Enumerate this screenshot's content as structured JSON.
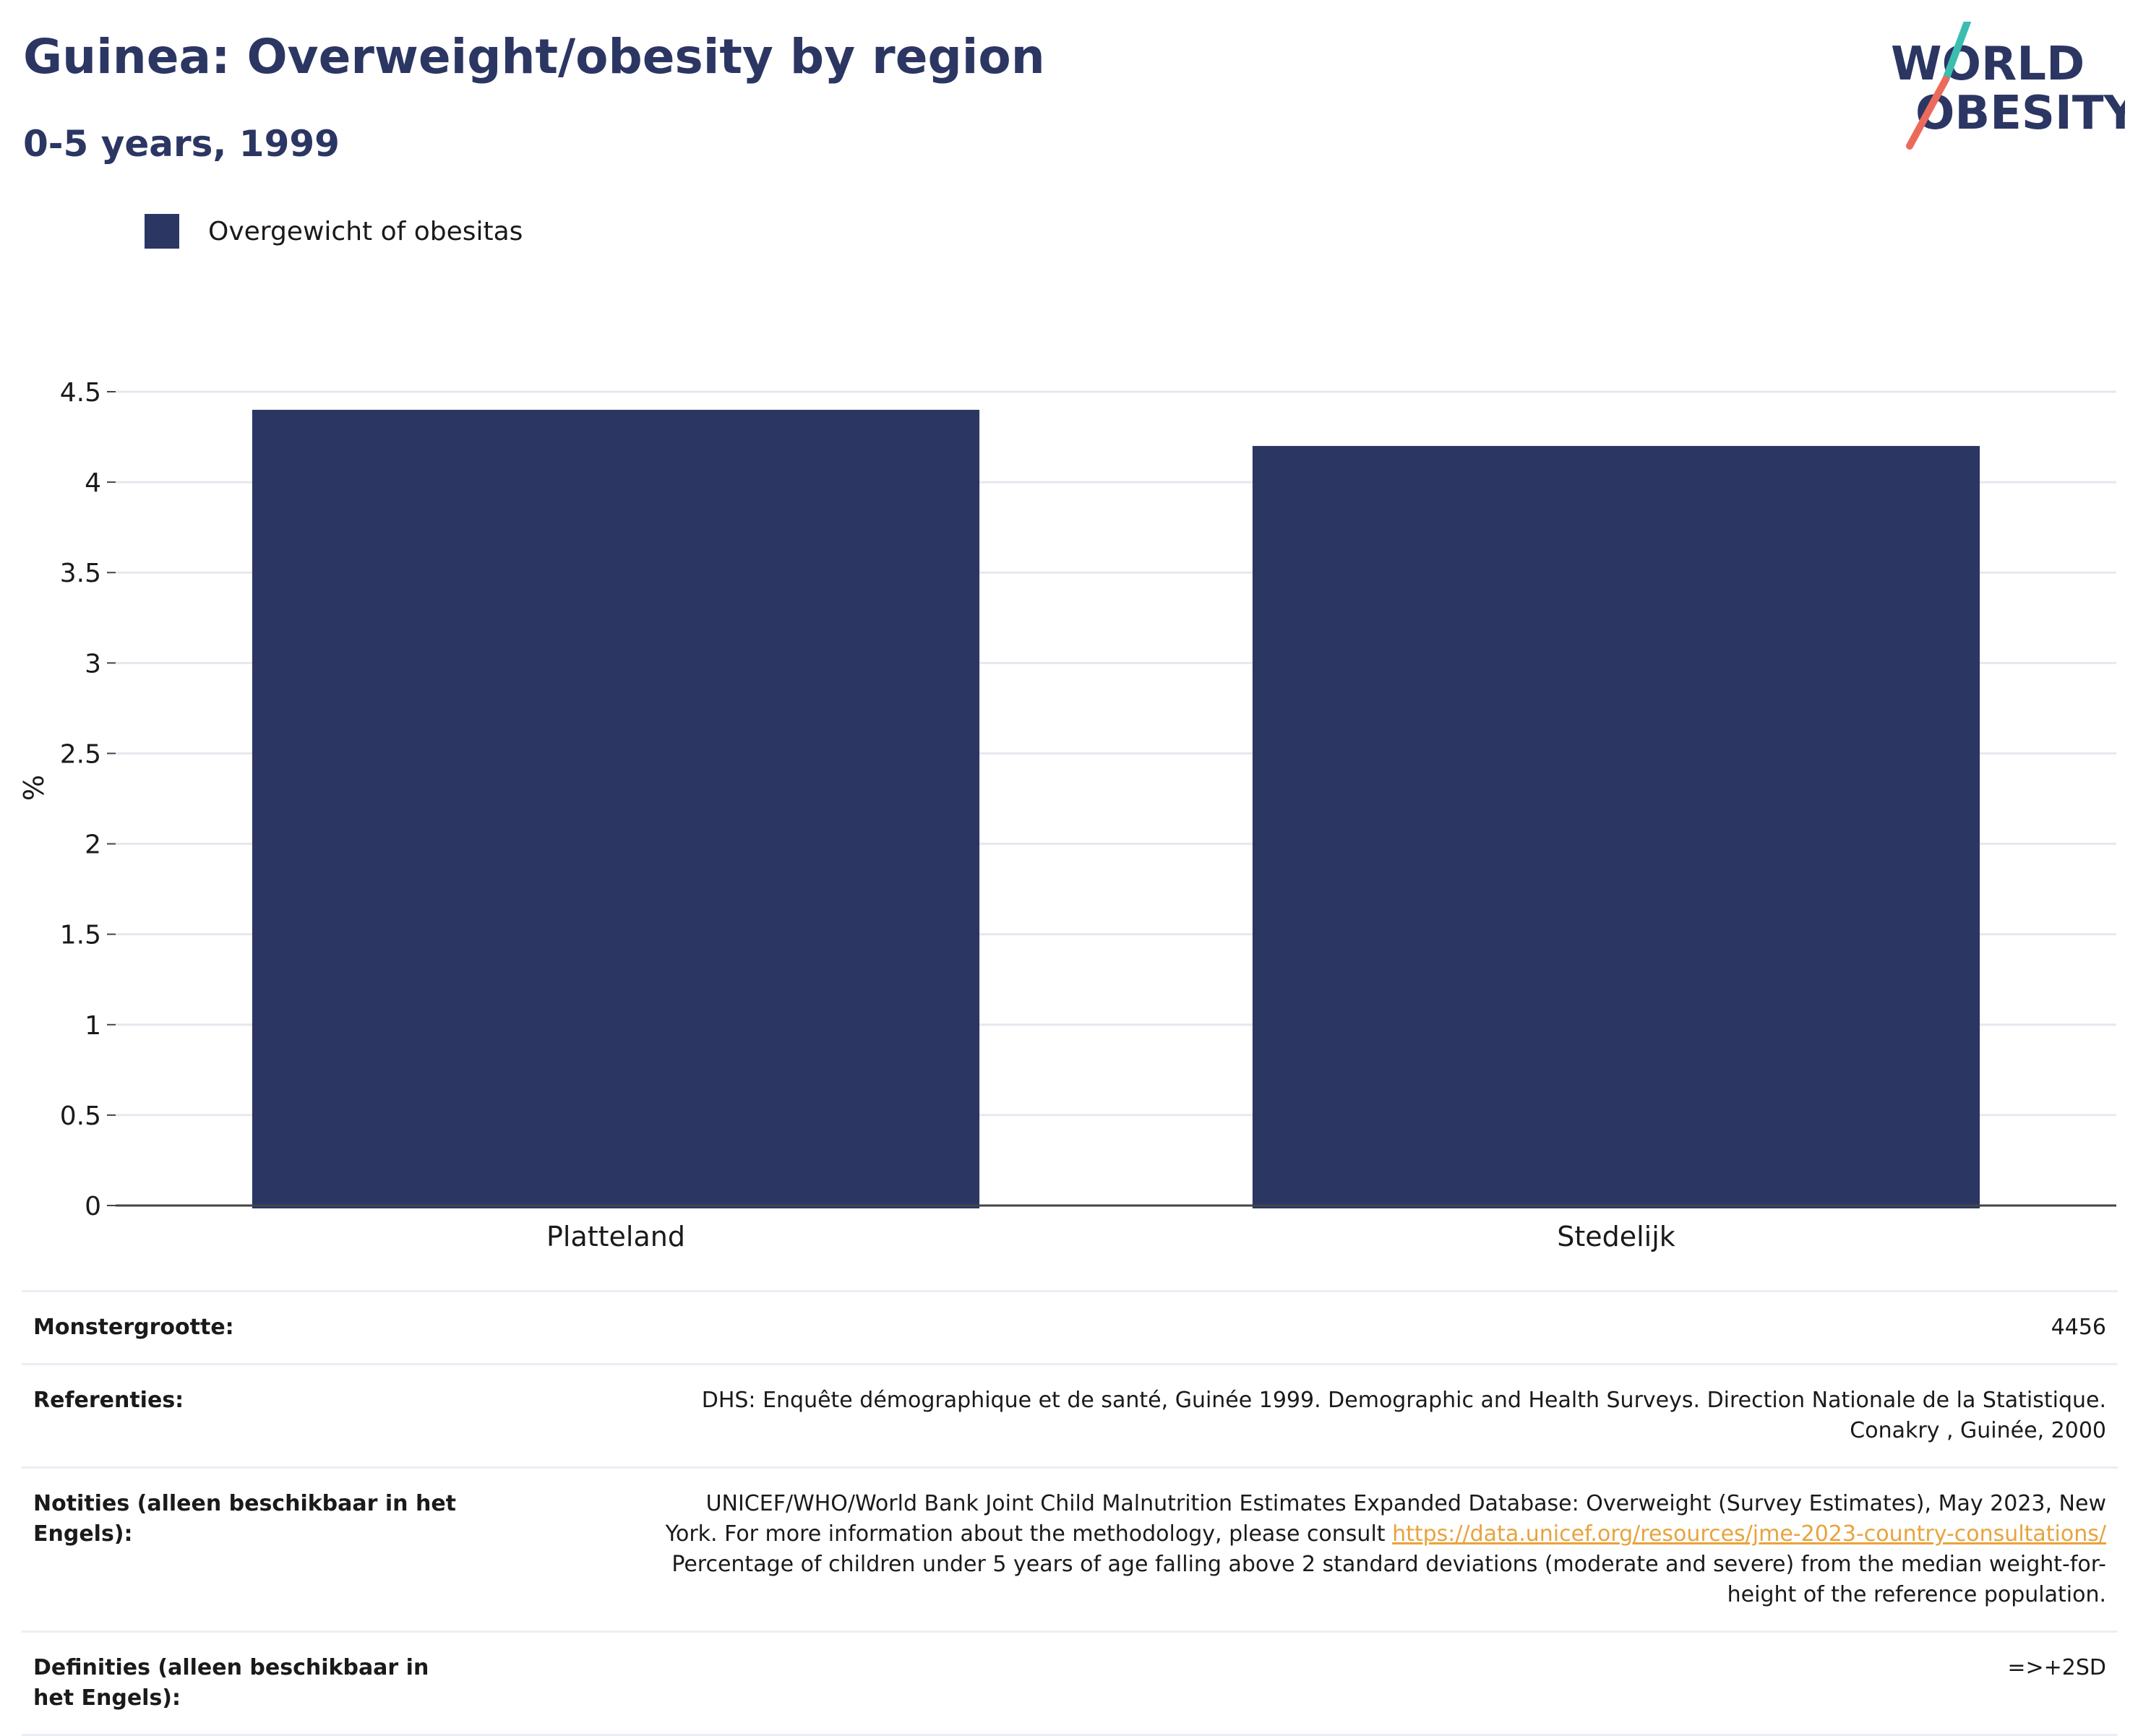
{
  "header": {
    "title": "Guinea: Overweight/obesity by region",
    "subtitle": "0-5 years, 1999"
  },
  "logo": {
    "line1": "WORLD",
    "line2": "OBESITY",
    "colors": {
      "text": "#2b3663",
      "slash_teal": "#3bbdb0",
      "slash_coral": "#ec6a5c"
    }
  },
  "legend": {
    "label": "Overgewicht of obesitas",
    "color": "#2b3663"
  },
  "chart_data": {
    "type": "bar",
    "categories": [
      "Platteland",
      "Stedelijk"
    ],
    "series": [
      {
        "name": "Overgewicht of obesitas",
        "values": [
          4.4,
          4.2
        ]
      }
    ],
    "ylabel": "%",
    "xlabel": "",
    "ylim": [
      0,
      4.5
    ],
    "yticks": [
      0,
      0.5,
      1,
      1.5,
      2,
      2.5,
      3,
      3.5,
      4,
      4.5
    ],
    "ytick_labels": [
      "0",
      "0.5",
      "1",
      "1.5",
      "2",
      "2.5",
      "3",
      "3.5",
      "4",
      "4.5"
    ],
    "grid": true,
    "legend_position": "top-left",
    "bar_color": "#2b3663"
  },
  "info": {
    "sample_size_label": "Monstergrootte:",
    "sample_size_value": "4456",
    "references_label": "Referenties:",
    "references_line1": "DHS: Enquête démographique et de santé, Guinée 1999. Demographic and Health Surveys. Direction Nationale de la Statistique.",
    "references_line2": "Conakry , Guinée, 2000",
    "notes_label": "Notities (alleen beschikbaar in het Engels):",
    "notes_line1": "UNICEF/WHO/World Bank Joint Child Malnutrition Estimates Expanded Database: Overweight (Survey Estimates), May 2023, New",
    "notes_line2_prefix": "York. For more information about the methodology, please consult",
    "notes_link": "https://data.unicef.org/resources/jme-2023-country-consultations/",
    "notes_line3": "Percentage of children under 5 years of age falling above 2 standard deviations (moderate and severe) from the median weight-for-",
    "notes_line4": "height of the reference population.",
    "definitions_label": "Definities (alleen beschikbaar in het Engels):",
    "definitions_value": "=>+2SD"
  }
}
